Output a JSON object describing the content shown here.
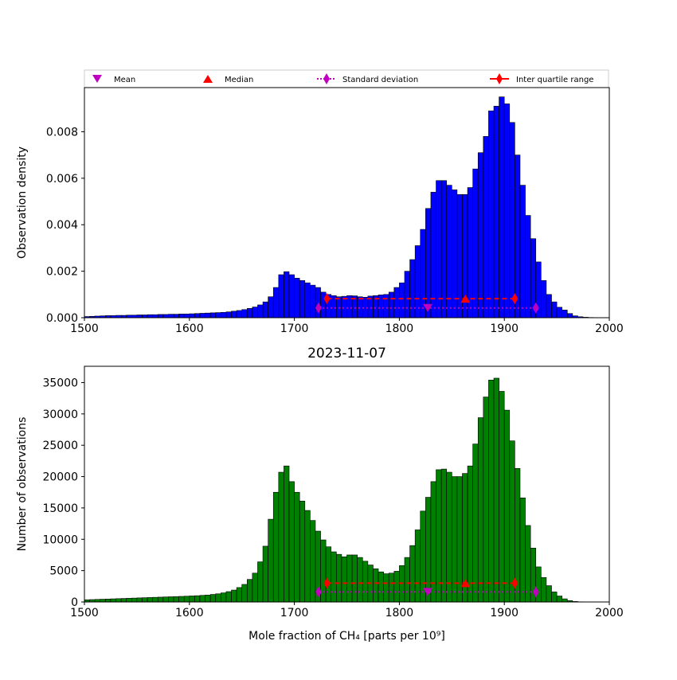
{
  "colors": {
    "top_bars": "#0000ff",
    "bottom_bars": "#008000",
    "mean": "#bf00bf",
    "median": "#ff0000",
    "stddev": "#bf00bf",
    "iqr": "#ff0000"
  },
  "legend": {
    "mean": "Mean",
    "median": "Median",
    "std": "Standard deviation",
    "iqr": "Inter quartile range"
  },
  "chart_data": [
    {
      "type": "bar",
      "title": "",
      "xlabel": "",
      "ylabel": "Observation density",
      "xlim": [
        1500,
        2000
      ],
      "ylim": [
        0,
        0.0099
      ],
      "xticks": [
        "1500",
        "1600",
        "1700",
        "1800",
        "1900",
        "2000"
      ],
      "yticks": [
        "0.000",
        "0.002",
        "0.004",
        "0.006",
        "0.008"
      ],
      "bin_width": 5,
      "bin_start": 1500,
      "values": [
        5e-05,
        6e-05,
        7e-05,
        8e-05,
        9e-05,
        9e-05,
        0.0001,
        0.0001,
        0.00011,
        0.00011,
        0.00012,
        0.00012,
        0.00013,
        0.00013,
        0.00014,
        0.00014,
        0.00015,
        0.00015,
        0.00016,
        0.00016,
        0.00017,
        0.00018,
        0.00019,
        0.0002,
        0.00021,
        0.00022,
        0.00023,
        0.00025,
        0.00028,
        0.00031,
        0.00035,
        0.0004,
        0.00046,
        0.00055,
        0.00068,
        0.0009,
        0.0013,
        0.00185,
        0.00198,
        0.00185,
        0.0017,
        0.0016,
        0.0015,
        0.0014,
        0.0013,
        0.0011,
        0.001,
        0.00095,
        0.0009,
        0.00092,
        0.00095,
        0.00094,
        0.0009,
        0.00088,
        0.00093,
        0.00095,
        0.00098,
        0.001,
        0.0011,
        0.0013,
        0.0015,
        0.002,
        0.0025,
        0.0031,
        0.0038,
        0.0047,
        0.0054,
        0.0059,
        0.0059,
        0.0057,
        0.0055,
        0.0053,
        0.0053,
        0.0056,
        0.0064,
        0.0071,
        0.0078,
        0.0089,
        0.0091,
        0.0095,
        0.0092,
        0.0084,
        0.007,
        0.0057,
        0.0044,
        0.0034,
        0.0024,
        0.0016,
        0.001,
        0.00068,
        0.00045,
        0.00033,
        0.00018,
        8e-05,
        4e-05,
        2e-05,
        1e-05,
        0,
        0,
        0
      ],
      "mean": 1827,
      "median": 1863,
      "std_range": [
        1723,
        1930
      ],
      "iqr_range": [
        1731,
        1910
      ],
      "marker_levels": {
        "mean": 0.00042,
        "median": 0.00082,
        "std": 0.00042,
        "iqr": 0.00082
      }
    },
    {
      "type": "bar",
      "title": "2023-11-07",
      "xlabel": "Mole fraction of CH₄ [parts per 10⁹]",
      "ylabel": "Number of observations",
      "xlim": [
        1500,
        2000
      ],
      "ylim": [
        0,
        37600
      ],
      "xticks": [
        "1500",
        "1600",
        "1700",
        "1800",
        "1900",
        "2000"
      ],
      "yticks": [
        "0",
        "5000",
        "10000",
        "15000",
        "20000",
        "25000",
        "30000",
        "35000"
      ],
      "bin_width": 5,
      "bin_start": 1500,
      "values": [
        350,
        380,
        410,
        440,
        470,
        500,
        530,
        560,
        590,
        620,
        650,
        680,
        710,
        740,
        770,
        800,
        830,
        860,
        890,
        920,
        960,
        1000,
        1050,
        1100,
        1200,
        1300,
        1450,
        1650,
        1900,
        2300,
        2800,
        3600,
        4600,
        6400,
        8900,
        13200,
        17500,
        20700,
        21700,
        19200,
        17500,
        16100,
        14600,
        13000,
        11300,
        9900,
        8800,
        8000,
        7600,
        7200,
        7500,
        7500,
        7100,
        6500,
        5900,
        5300,
        4800,
        4500,
        4600,
        4900,
        5800,
        7100,
        9000,
        11500,
        14500,
        16700,
        19200,
        21100,
        21200,
        20700,
        20000,
        20000,
        20500,
        21700,
        25200,
        29400,
        32700,
        35400,
        35700,
        33600,
        30600,
        25700,
        21300,
        16600,
        12200,
        8600,
        5600,
        3900,
        2600,
        1600,
        950,
        500,
        220,
        80,
        30,
        10,
        0,
        0,
        0,
        0
      ],
      "mean": 1827,
      "median": 1863,
      "std_range": [
        1723,
        1930
      ],
      "iqr_range": [
        1731,
        1910
      ],
      "marker_levels": {
        "mean": 1600,
        "median": 3000,
        "std": 1600,
        "iqr": 3000
      }
    }
  ]
}
